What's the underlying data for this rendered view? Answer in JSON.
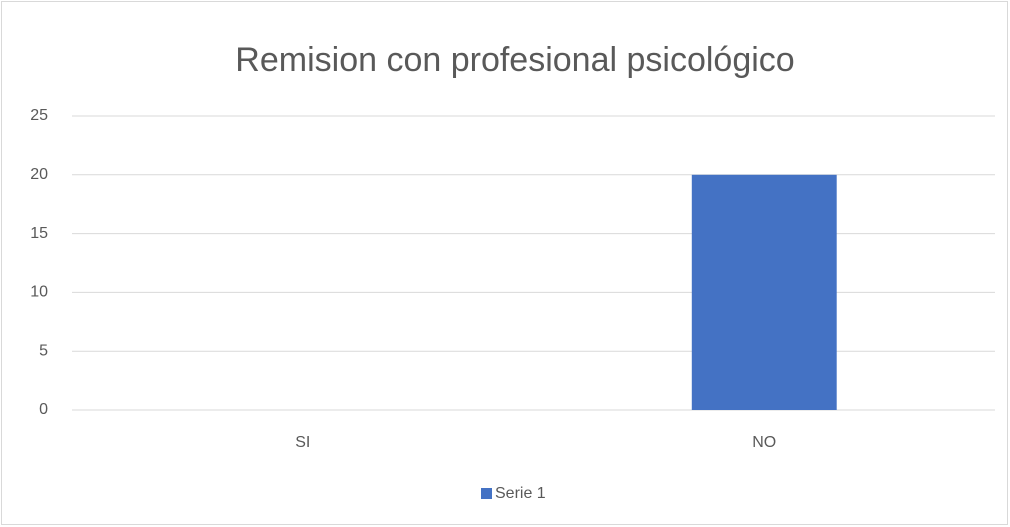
{
  "chart_data": {
    "type": "bar",
    "title": "Remision con profesional psicológico",
    "categories": [
      "SI",
      "NO"
    ],
    "series": [
      {
        "name": "Serie 1",
        "color": "#4472c4",
        "values": [
          0,
          20
        ]
      }
    ],
    "ylim": [
      0,
      25
    ],
    "yticks": [
      0,
      5,
      10,
      15,
      20,
      25
    ],
    "grid": true,
    "legend": "bottom"
  }
}
